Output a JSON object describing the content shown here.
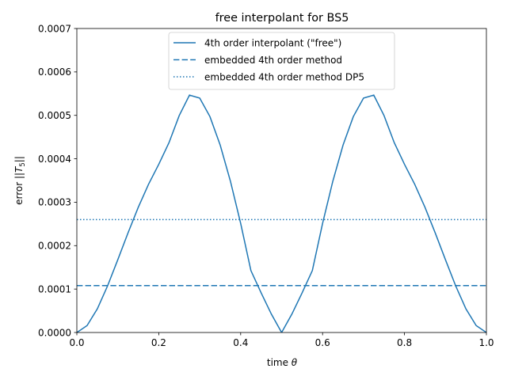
{
  "chart_data": {
    "type": "line",
    "title": "free interpolant for BS5",
    "xlabel": "time θ",
    "ylabel": "error ||T₅||",
    "xlim": [
      0.0,
      1.0
    ],
    "ylim": [
      0.0,
      0.0007
    ],
    "xticks": [
      "0.0",
      "0.2",
      "0.4",
      "0.6",
      "0.8",
      "1.0"
    ],
    "yticks": [
      "0.0000",
      "0.0001",
      "0.0002",
      "0.0003",
      "0.0004",
      "0.0005",
      "0.0006",
      "0.0007"
    ],
    "xtick_values": [
      0.0,
      0.2,
      0.4,
      0.6,
      0.8,
      1.0
    ],
    "ytick_values": [
      0.0,
      0.0001,
      0.0002,
      0.0003,
      0.0004,
      0.0005,
      0.0006,
      0.0007
    ],
    "legend_position": "top-center",
    "color": "#1f77b4",
    "series": [
      {
        "name": "4th order interpolant (\"free\")",
        "style": "solid",
        "x": [
          0.0,
          0.025,
          0.05,
          0.075,
          0.1,
          0.125,
          0.15,
          0.175,
          0.2,
          0.225,
          0.25,
          0.275,
          0.3,
          0.325,
          0.35,
          0.375,
          0.4,
          0.425,
          0.45,
          0.475,
          0.5,
          0.525,
          0.55,
          0.575,
          0.6,
          0.625,
          0.65,
          0.675,
          0.7,
          0.725,
          0.75,
          0.775,
          0.8,
          0.825,
          0.85,
          0.875,
          0.9,
          0.925,
          0.95,
          0.975,
          1.0
        ],
        "y": [
          0.0,
          1.59e-05,
          5.44e-05,
          0.0001073,
          0.0001676,
          0.0002294,
          0.0002883,
          0.0003412,
          0.0003873,
          0.0004371,
          0.0004996,
          0.0005466,
          0.0005398,
          0.0004971,
          0.0004316,
          0.0003484,
          0.0002512,
          0.0001426,
          9.12e-05,
          4.23e-05,
          0.0,
          4.23e-05,
          9.12e-05,
          0.0001426,
          0.0002512,
          0.0003484,
          0.0004316,
          0.0004971,
          0.0005398,
          0.0005466,
          0.0004996,
          0.0004371,
          0.0003873,
          0.0003412,
          0.0002883,
          0.0002294,
          0.0001676,
          0.0001073,
          5.44e-05,
          1.59e-05,
          0.0
        ]
      },
      {
        "name": "embedded 4th order method",
        "style": "dashed",
        "x": [
          0.0,
          1.0
        ],
        "y": [
          0.000108,
          0.000108
        ]
      },
      {
        "name": "embedded 4th order method DP5",
        "style": "dotted",
        "x": [
          0.0,
          1.0
        ],
        "y": [
          0.00026,
          0.00026
        ]
      }
    ]
  }
}
